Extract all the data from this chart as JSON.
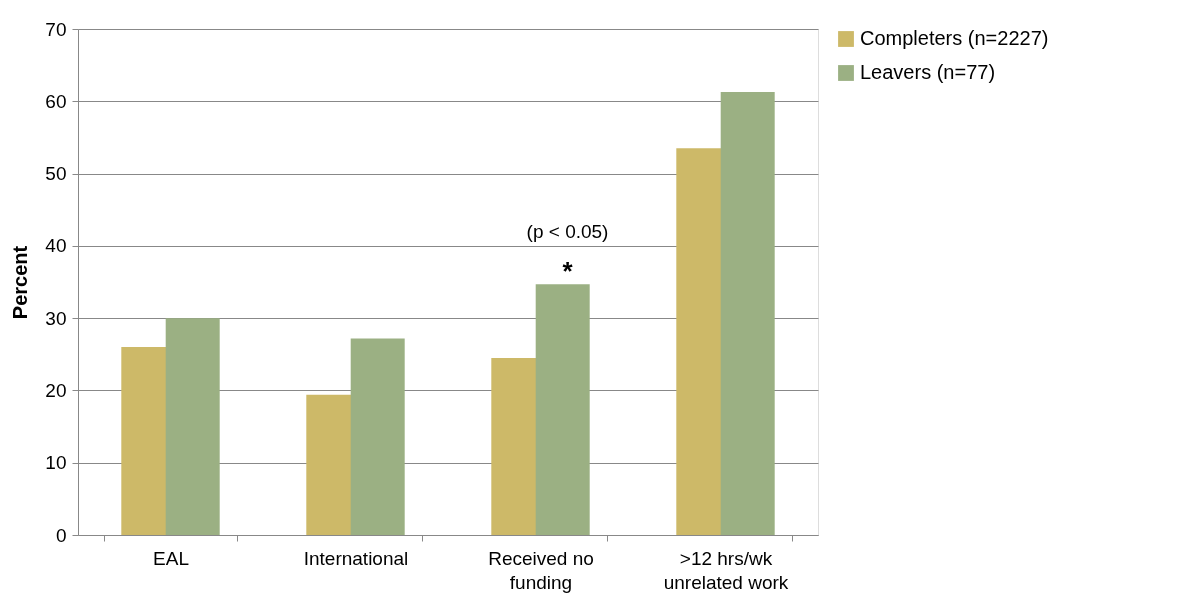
{
  "chart_data": {
    "type": "bar",
    "ylabel": "Percent",
    "categories": [
      "EAL",
      "International",
      "Received no funding",
      ">12 hrs/wk unrelated work"
    ],
    "series": [
      {
        "name": "Completers (n=2227)",
        "color": "#cdb968",
        "values": [
          26.0,
          19.4,
          24.5,
          53.5
        ]
      },
      {
        "name": "Leavers (n=77)",
        "color": "#9bb083",
        "values": [
          30.0,
          27.2,
          34.7,
          61.3
        ]
      }
    ],
    "ylim": [
      0,
      70
    ],
    "yticks": [
      0,
      10,
      20,
      30,
      40,
      50,
      60,
      70
    ],
    "grid": "y",
    "legend": "right",
    "annotations": [
      {
        "text": "*",
        "x": "Received no funding",
        "y": 34.7
      },
      {
        "text": "(p < 0.05)",
        "x": "Received no funding",
        "y": 34.7
      }
    ]
  }
}
